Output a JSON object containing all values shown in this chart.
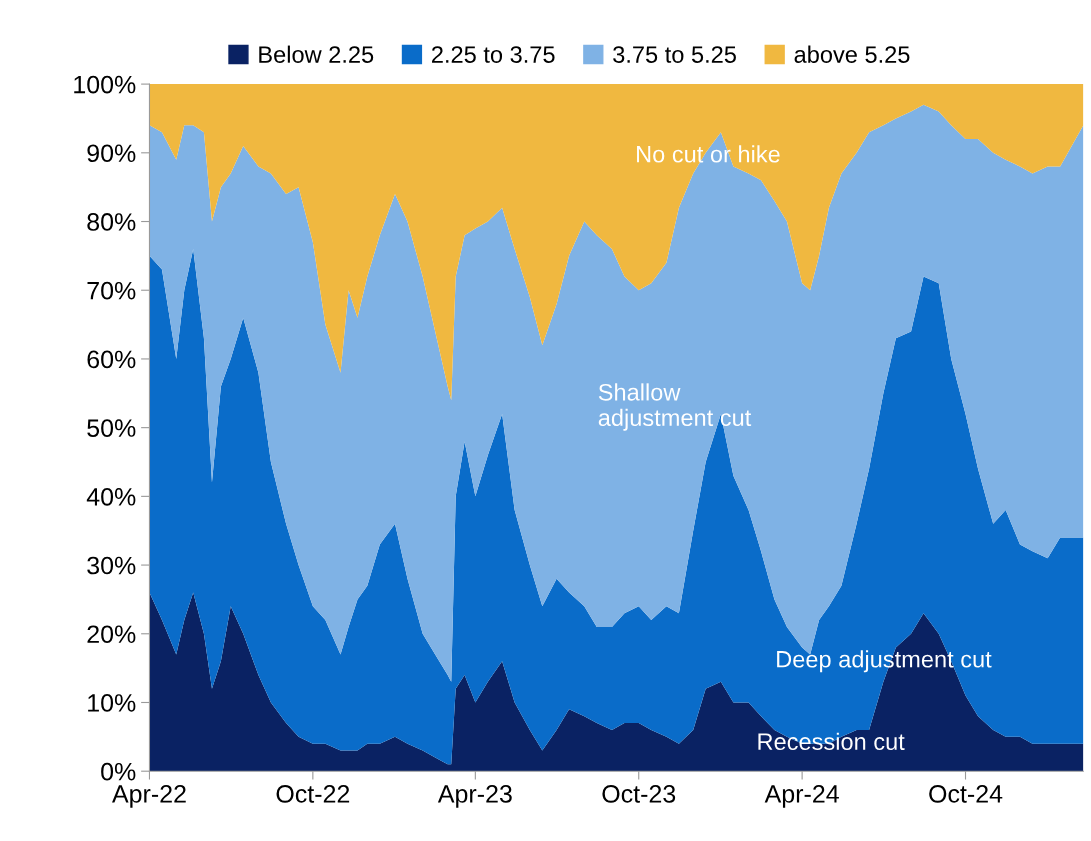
{
  "chart_data": {
    "type": "area",
    "stacked": true,
    "legend": "top",
    "grid": false,
    "x": [
      "2022-04-01",
      "2022-04-15",
      "2022-05-01",
      "2022-05-10",
      "2022-05-20",
      "2022-06-01",
      "2022-06-10",
      "2022-06-20",
      "2022-07-01",
      "2022-07-15",
      "2022-08-01",
      "2022-08-15",
      "2022-09-01",
      "2022-09-15",
      "2022-10-01",
      "2022-10-15",
      "2022-11-01",
      "2022-11-10",
      "2022-11-20",
      "2022-12-01",
      "2022-12-15",
      "2023-01-01",
      "2023-01-15",
      "2023-02-01",
      "2023-02-15",
      "2023-03-01",
      "2023-03-05",
      "2023-03-10",
      "2023-03-20",
      "2023-04-01",
      "2023-04-15",
      "2023-05-01",
      "2023-05-15",
      "2023-06-01",
      "2023-06-15",
      "2023-07-01",
      "2023-07-15",
      "2023-08-01",
      "2023-08-15",
      "2023-09-01",
      "2023-09-15",
      "2023-10-01",
      "2023-10-15",
      "2023-11-01",
      "2023-11-15",
      "2023-12-01",
      "2023-12-15",
      "2024-01-01",
      "2024-01-15",
      "2024-02-01",
      "2024-02-15",
      "2024-03-01",
      "2024-03-15",
      "2024-04-01",
      "2024-04-10",
      "2024-04-20",
      "2024-05-01",
      "2024-05-15",
      "2024-06-01",
      "2024-06-15",
      "2024-07-01",
      "2024-07-15",
      "2024-08-01",
      "2024-08-15",
      "2024-09-01",
      "2024-09-15",
      "2024-10-01",
      "2024-10-15",
      "2024-11-01",
      "2024-11-15",
      "2024-12-01",
      "2024-12-15",
      "2025-01-01",
      "2025-01-15",
      "2025-02-10"
    ],
    "series": [
      {
        "name": "Below 2.25",
        "color": "#0a2263",
        "values": [
          26,
          22,
          17,
          22,
          26,
          20,
          12,
          16,
          24,
          20,
          14,
          10,
          7,
          5,
          4,
          4,
          3,
          3,
          3,
          4,
          4,
          5,
          4,
          3,
          2,
          1,
          1,
          12,
          14,
          10,
          13,
          16,
          10,
          6,
          3,
          6,
          9,
          8,
          7,
          6,
          7,
          7,
          6,
          5,
          4,
          6,
          12,
          13,
          10,
          10,
          8,
          6,
          5,
          4,
          4,
          4,
          4,
          5,
          6,
          6,
          13,
          18,
          20,
          23,
          20,
          16,
          11,
          8,
          6,
          5,
          5,
          4,
          4,
          4,
          4
        ]
      },
      {
        "name": "2.25 to 3.75",
        "color": "#0a6cc9",
        "values": [
          49,
          51,
          43,
          48,
          50,
          43,
          30,
          40,
          36,
          46,
          44,
          35,
          29,
          25,
          20,
          18,
          14,
          18,
          22,
          23,
          29,
          31,
          24,
          17,
          15,
          13,
          12,
          28,
          34,
          30,
          33,
          36,
          28,
          24,
          21,
          22,
          17,
          16,
          14,
          15,
          16,
          17,
          16,
          19,
          19,
          29,
          33,
          39,
          33,
          28,
          24,
          19,
          16,
          14,
          13,
          18,
          20,
          22,
          30,
          38,
          42,
          45,
          44,
          49,
          51,
          44,
          41,
          36,
          30,
          33,
          28,
          28,
          27,
          30,
          30
        ]
      },
      {
        "name": "3.75 to 5.25",
        "color": "#7fb2e5",
        "values": [
          19,
          20,
          29,
          24,
          18,
          30,
          38,
          29,
          27,
          25,
          30,
          42,
          48,
          55,
          53,
          43,
          41,
          49,
          41,
          45,
          45,
          48,
          52,
          52,
          47,
          42,
          41,
          32,
          30,
          39,
          34,
          30,
          38,
          39,
          38,
          40,
          49,
          56,
          57,
          55,
          49,
          46,
          49,
          50,
          59,
          52,
          45,
          41,
          45,
          49,
          54,
          58,
          59,
          53,
          53,
          53,
          58,
          60,
          54,
          49,
          39,
          32,
          32,
          25,
          25,
          34,
          40,
          48,
          54,
          51,
          55,
          55,
          57,
          54,
          60
        ]
      },
      {
        "name": "above 5.25",
        "color": "#f0b840",
        "values": [
          6,
          7,
          11,
          6,
          6,
          7,
          20,
          15,
          13,
          9,
          12,
          13,
          16,
          15,
          23,
          35,
          42,
          30,
          34,
          28,
          22,
          16,
          20,
          28,
          36,
          44,
          46,
          28,
          22,
          21,
          20,
          18,
          24,
          31,
          38,
          32,
          25,
          20,
          22,
          24,
          28,
          30,
          29,
          26,
          18,
          13,
          10,
          7,
          12,
          13,
          14,
          17,
          20,
          29,
          30,
          25,
          18,
          13,
          10,
          7,
          6,
          5,
          4,
          3,
          4,
          6,
          8,
          8,
          10,
          11,
          12,
          13,
          12,
          12,
          6
        ]
      }
    ],
    "xlim": [
      "2022-04-01",
      "2025-02-10"
    ],
    "xticks": [
      {
        "value": "2022-04-01",
        "label": "Apr-22"
      },
      {
        "value": "2022-10-01",
        "label": "Oct-22"
      },
      {
        "value": "2023-04-01",
        "label": "Apr-23"
      },
      {
        "value": "2023-10-01",
        "label": "Oct-23"
      },
      {
        "value": "2024-04-01",
        "label": "Apr-24"
      },
      {
        "value": "2024-10-01",
        "label": "Oct-24"
      }
    ],
    "ylim": [
      0,
      100
    ],
    "yticks": [
      {
        "value": 0,
        "label": "0%"
      },
      {
        "value": 10,
        "label": "10%"
      },
      {
        "value": 20,
        "label": "20%"
      },
      {
        "value": 30,
        "label": "30%"
      },
      {
        "value": 40,
        "label": "40%"
      },
      {
        "value": 50,
        "label": "50%"
      },
      {
        "value": 60,
        "label": "60%"
      },
      {
        "value": 70,
        "label": "70%"
      },
      {
        "value": 80,
        "label": "80%"
      },
      {
        "value": 90,
        "label": "90%"
      },
      {
        "value": 100,
        "label": "100%"
      }
    ],
    "annotations": [
      "No cut or hike",
      "Shallow\nadjustment cut",
      "Deep adjustment cut",
      "Recession cut"
    ]
  }
}
